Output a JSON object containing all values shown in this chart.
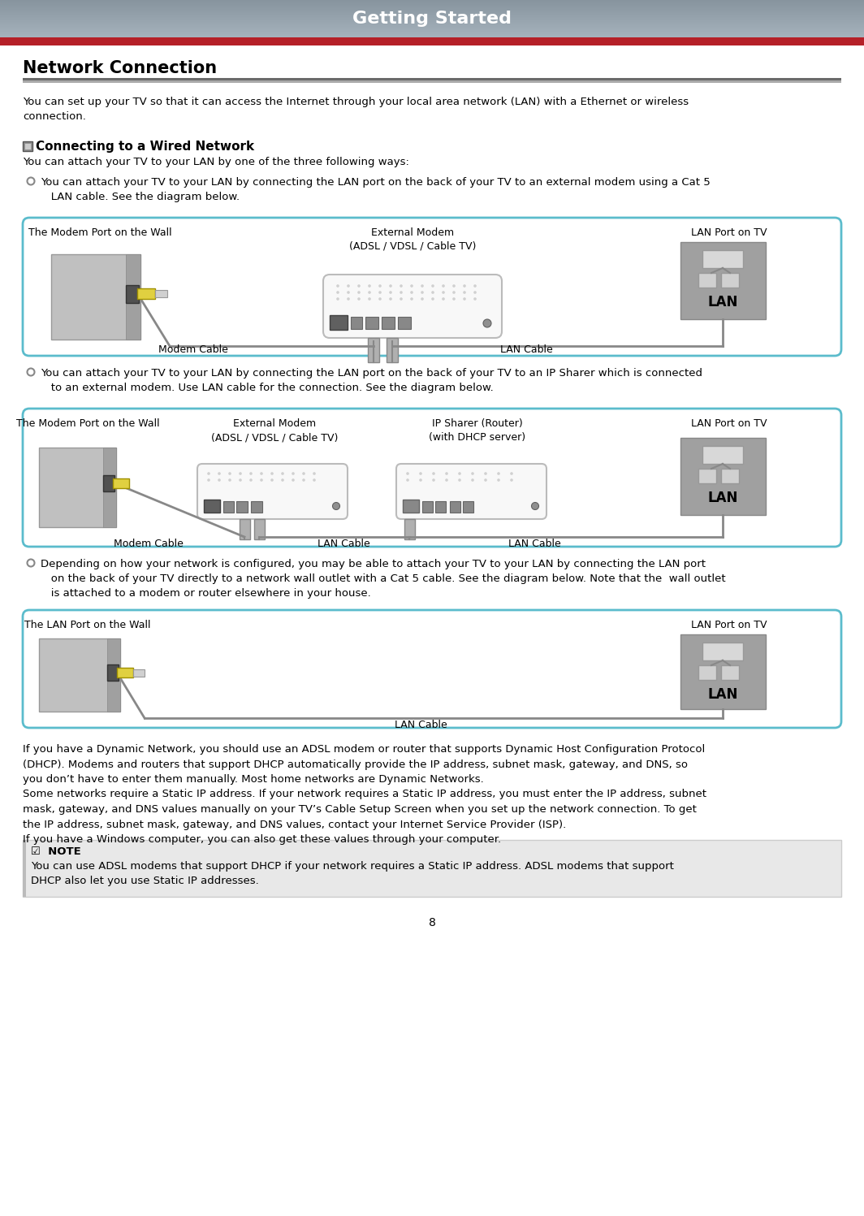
{
  "page_bg": "#ffffff",
  "header_red": "#b52028",
  "header_text": "Getting Started",
  "header_text_color": "#ffffff",
  "section_title": "Network Connection",
  "intro_text": "You can set up your TV so that it can access the Internet through your local area network (LAN) with a Ethernet or wireless\nconnection.",
  "sub_title": "Connecting to a Wired Network",
  "sub_text": "You can attach your TV to your LAN by one of the three following ways:",
  "bullet1": "You can attach your TV to your LAN by connecting the LAN port on the back of your TV to an external modem using a Cat 5\n   LAN cable. See the diagram below.",
  "bullet2": "You can attach your TV to your LAN by connecting the LAN port on the back of your TV to an IP Sharer which is connected\n   to an external modem. Use LAN cable for the connection. See the diagram below.",
  "bullet3": "Depending on how your network is configured, you may be able to attach your TV to your LAN by connecting the LAN port\n   on the back of your TV directly to a network wall outlet with a Cat 5 cable. See the diagram below. Note that the  wall outlet\n   is attached to a modem or router elsewhere in your house.",
  "diagram_border_color": "#5bbccc",
  "diagram1_labels": [
    "The Modem Port on the Wall",
    "External Modem\n(ADSL / VDSL / Cable TV)",
    "LAN Port on TV"
  ],
  "diagram1_cable_labels": [
    "Modem Cable",
    "LAN Cable"
  ],
  "diagram2_labels": [
    "The Modem Port on the Wall",
    "External Modem\n(ADSL / VDSL / Cable TV)",
    "IP Sharer (Router)\n(with DHCP server)",
    "LAN Port on TV"
  ],
  "diagram2_cable_labels": [
    "Modem Cable",
    "LAN Cable",
    "LAN Cable"
  ],
  "diagram3_labels": [
    "The LAN Port on the Wall",
    "LAN Port on TV"
  ],
  "diagram3_cable_labels": [
    "LAN Cable"
  ],
  "para_text": "If you have a Dynamic Network, you should use an ADSL modem or router that supports Dynamic Host Configuration Protocol\n(DHCP). Modems and routers that support DHCP automatically provide the IP address, subnet mask, gateway, and DNS, so\nyou don’t have to enter them manually. Most home networks are Dynamic Networks.\nSome networks require a Static IP address. If your network requires a Static IP address, you must enter the IP address, subnet\nmask, gateway, and DNS values manually on your TV’s Cable Setup Screen when you set up the network connection. To get\nthe IP address, subnet mask, gateway, and DNS values, contact your Internet Service Provider (ISP).\nIf you have a Windows computer, you can also get these values through your computer.",
  "note_title": "☑  NOTE",
  "note_text": "You can use ADSL modems that support DHCP if your network requires a Static IP address. ADSL modems that support\nDHCP also let you use Static IP addresses.",
  "page_number": "8"
}
